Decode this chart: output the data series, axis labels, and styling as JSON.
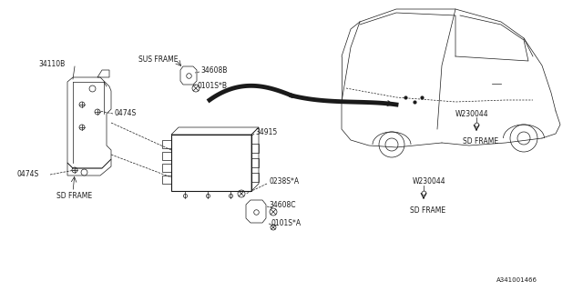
{
  "bg_color": "#ffffff",
  "line_color": "#1a1a1a",
  "thin_line": 0.5,
  "medium_line": 0.8,
  "fig_width": 6.4,
  "fig_height": 3.2,
  "part_number_ref": "A341001466",
  "labels": {
    "sus_frame": "SUS FRAME",
    "34608B": "34608B",
    "0101sB": "0101S*B",
    "34110B": "34110B",
    "0474S_top": "0474S",
    "0474S_bot": "0474S",
    "34915": "34915",
    "0238sA": "0238S*A",
    "34608C": "34608C",
    "0101sA": "0101S*A",
    "W230044_top": "W230044",
    "sd_frame_right_top": "SD FRAME",
    "W230044_bot": "W230044",
    "sd_frame_right_bot": "SD FRAME",
    "sd_frame_left": "SD FRAME"
  }
}
